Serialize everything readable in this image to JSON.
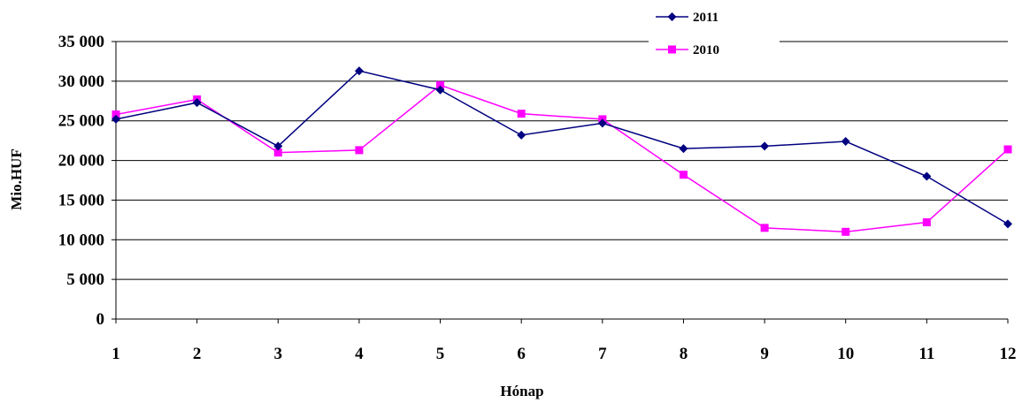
{
  "chart_data": {
    "type": "line",
    "title": "",
    "xlabel": "Hónap",
    "ylabel": "Mio.HUF",
    "categories": [
      "1",
      "2",
      "3",
      "4",
      "5",
      "6",
      "7",
      "8",
      "9",
      "10",
      "11",
      "12"
    ],
    "ylim": [
      0,
      35000
    ],
    "yticks": [
      0,
      5000,
      10000,
      15000,
      20000,
      25000,
      30000,
      35000
    ],
    "ytick_labels": [
      "0",
      "5 000",
      "10 000",
      "15 000",
      "20 000",
      "25 000",
      "30 000",
      "35 000"
    ],
    "grid": "horizontal",
    "legend_position": "top-right",
    "series": [
      {
        "name": "2011",
        "color": "#000080",
        "marker": "diamond",
        "values": [
          25200,
          27300,
          21800,
          31300,
          28900,
          23200,
          24700,
          21500,
          21800,
          22400,
          18000,
          12000
        ]
      },
      {
        "name": "2010",
        "color": "#ff00ff",
        "marker": "square",
        "values": [
          25800,
          27700,
          21000,
          21300,
          29500,
          25900,
          25200,
          18200,
          11500,
          11000,
          12200,
          21400
        ]
      }
    ]
  }
}
